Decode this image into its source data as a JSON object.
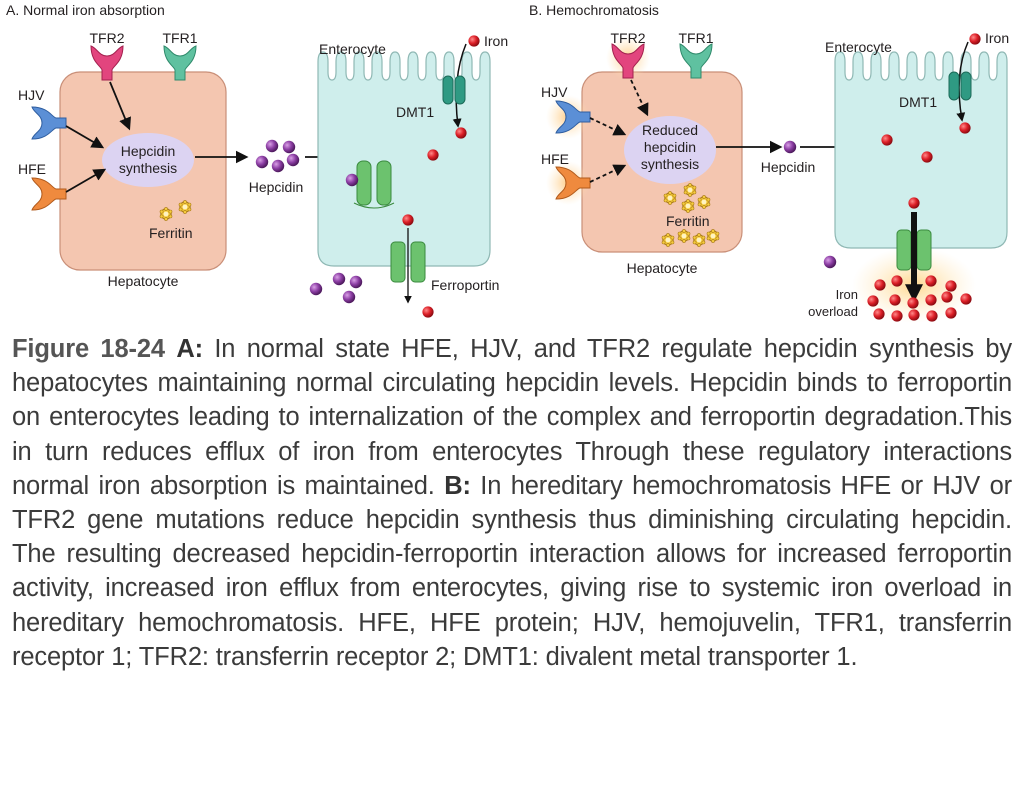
{
  "panel_a": {
    "title": "A. Normal iron absorption",
    "tfr2": "TFR2",
    "tfr1": "TFR1",
    "hjv": "HJV",
    "hfe": "HFE",
    "hepcidin_synthesis_line1": "Hepcidin",
    "hepcidin_synthesis_line2": "synthesis",
    "ferritin": "Ferritin",
    "hepatocyte": "Hepatocyte",
    "hepcidin": "Hepcidin",
    "enterocyte": "Enterocyte",
    "iron": "Iron",
    "dmt1": "DMT1",
    "ferroportin": "Ferroportin"
  },
  "panel_b": {
    "title": "B. Hemochromatosis",
    "tfr2": "TFR2",
    "tfr1": "TFR1",
    "hjv": "HJV",
    "hfe": "HFE",
    "reduced_line1": "Reduced",
    "reduced_line2": "hepcidin",
    "reduced_line3": "synthesis",
    "ferritin": "Ferritin",
    "hepatocyte": "Hepatocyte",
    "hepcidin": "Hepcidin",
    "enterocyte": "Enterocyte",
    "iron": "Iron",
    "dmt1": "DMT1",
    "iron_overload_line1": "Iron",
    "iron_overload_line2": "overload"
  },
  "caption": {
    "fig_num": "Figure 18-24",
    "label_a": "A:",
    "text_a": " In normal state HFE, HJV, and TFR2 regulate hepcidin synthesis by hepatocytes maintaining normal circulating hepcidin levels. Hepcidin binds to ferroportin on enterocytes leading to internalization of the complex and ferroportin degradation.This in turn reduces efflux of iron from enterocytes Through these regulatory interactions normal iron absorption is maintained. ",
    "label_b": "B:",
    "text_b": " In hereditary hemochromatosis HFE or HJV or TFR2 gene mutations reduce hepcidin synthesis thus diminishing circulating hepcidin. The resulting decreased hepcidin-ferroportin interaction allows for increased ferroportin activity, increased iron efflux from enterocytes, giving rise to systemic iron overload in hereditary hemochromatosis. HFE, HFE protein; HJV, hemojuvelin, TFR1, transferrin receptor 1; TFR2: transferrin receptor 2; DMT1: divalent metal transporter 1."
  },
  "colors": {
    "hepatocyte": "#f4c6b0",
    "enterocyte": "#cfeeec",
    "synthesis_bubble": "#dcd3f2",
    "tfr2": "#e2457e",
    "tfr1": "#5fc1a0",
    "hjv": "#5b8fd6",
    "hfe": "#ef8a3e",
    "dmt1": "#2f9a83",
    "ferroportin": "#6cc26e",
    "iron": "#d81f2a",
    "hepcidin": "#8a3fa0",
    "ferritin": "#f2c230"
  }
}
